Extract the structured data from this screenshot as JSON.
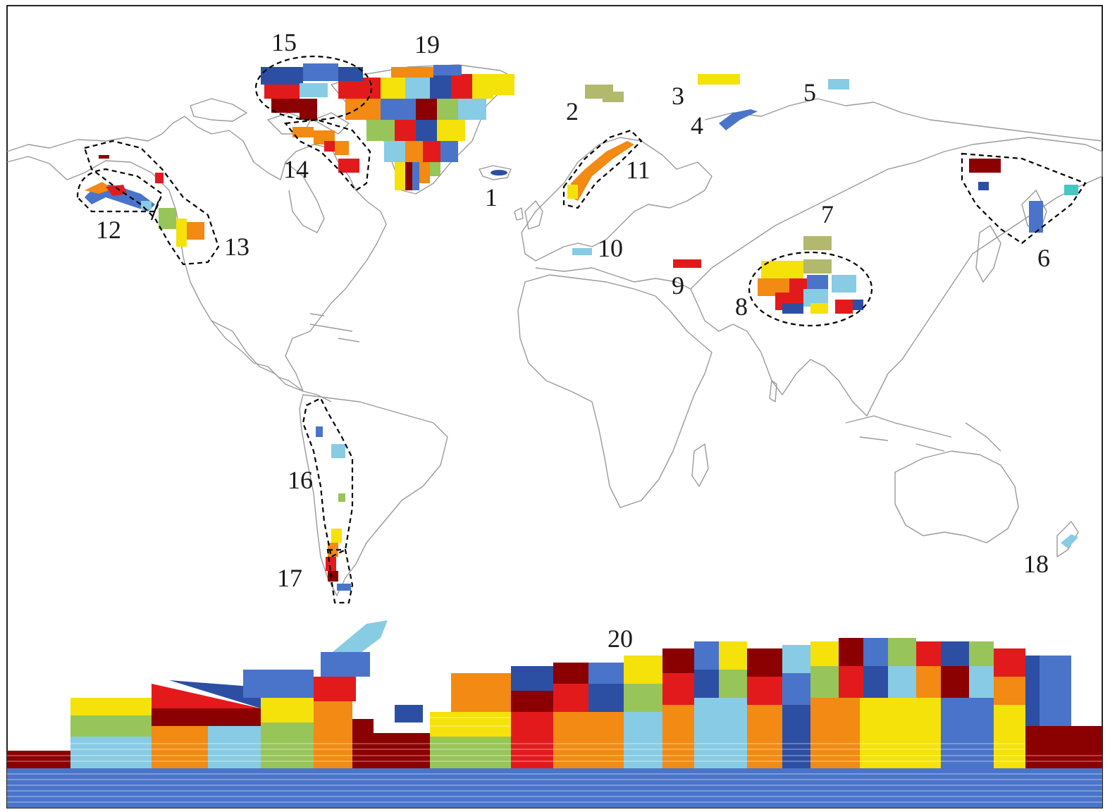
{
  "colors": {
    "coast": "#9a9a9a",
    "frame": "#222222",
    "outline": "#000000",
    "palette": [
      "#f5e20a",
      "#e31a1c",
      "#8b0000",
      "#2c4fa3",
      "#4a74c9",
      "#87cce4",
      "#f28a13",
      "#97c55a",
      "#b2b86e",
      "#45c7c4"
    ]
  },
  "regions": [
    {
      "id": 1,
      "label": "1"
    },
    {
      "id": 2,
      "label": "2"
    },
    {
      "id": 3,
      "label": "3"
    },
    {
      "id": 4,
      "label": "4"
    },
    {
      "id": 5,
      "label": "5"
    },
    {
      "id": 6,
      "label": "6"
    },
    {
      "id": 7,
      "label": "7"
    },
    {
      "id": 8,
      "label": "8"
    },
    {
      "id": 9,
      "label": "9"
    },
    {
      "id": 10,
      "label": "10"
    },
    {
      "id": 11,
      "label": "11"
    },
    {
      "id": 12,
      "label": "12"
    },
    {
      "id": 13,
      "label": "13"
    },
    {
      "id": 14,
      "label": "14"
    },
    {
      "id": 15,
      "label": "15"
    },
    {
      "id": 16,
      "label": "16"
    },
    {
      "id": 17,
      "label": "17"
    },
    {
      "id": 18,
      "label": "18"
    },
    {
      "id": 19,
      "label": "19"
    },
    {
      "id": 20,
      "label": "20"
    }
  ]
}
